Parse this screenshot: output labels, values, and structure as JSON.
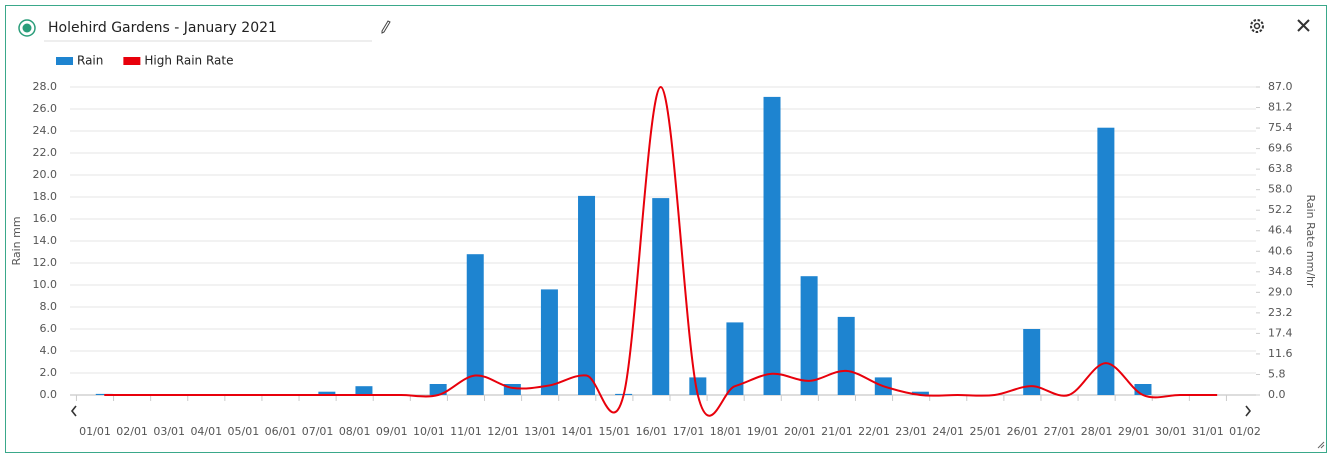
{
  "chart_data": {
    "type": "bar",
    "title": "Holehird Gardens - January 2021",
    "categories": [
      "01/01",
      "02/01",
      "03/01",
      "04/01",
      "05/01",
      "06/01",
      "07/01",
      "08/01",
      "09/01",
      "10/01",
      "11/01",
      "12/01",
      "13/01",
      "14/01",
      "15/01",
      "16/01",
      "17/01",
      "18/01",
      "19/01",
      "20/01",
      "21/01",
      "22/01",
      "23/01",
      "24/01",
      "25/01",
      "26/01",
      "27/01",
      "28/01",
      "29/01",
      "30/01",
      "31/01",
      "01/02"
    ],
    "y_label": "Rain mm",
    "y2_label": "Rain Rate mm/hr",
    "ylim": [
      0,
      28
    ],
    "yticks": [
      {
        "value": 0,
        "label": "0.0"
      },
      {
        "value": 2,
        "label": "2.0"
      },
      {
        "value": 4,
        "label": "4.0"
      },
      {
        "value": 6,
        "label": "6.0"
      },
      {
        "value": 8,
        "label": "8.0"
      },
      {
        "value": 10,
        "label": "10.0"
      },
      {
        "value": 12,
        "label": "12.0"
      },
      {
        "value": 14,
        "label": "14.0"
      },
      {
        "value": 16,
        "label": "16.0"
      },
      {
        "value": 18,
        "label": "18.0"
      },
      {
        "value": 20,
        "label": "20.0"
      },
      {
        "value": 22,
        "label": "22.0"
      },
      {
        "value": 24,
        "label": "24.0"
      },
      {
        "value": 26,
        "label": "26.0"
      },
      {
        "value": 28,
        "label": "28.0"
      }
    ],
    "y2lim": [
      0,
      87
    ],
    "y2ticks": [
      {
        "value": 0,
        "label": "0.0"
      },
      5.8,
      11.6,
      17.4,
      23.2,
      {
        "value": 29,
        "label": "29.0"
      },
      34.8,
      40.6,
      46.4,
      52.2,
      {
        "value": 58,
        "label": "58.0"
      },
      63.8,
      69.6,
      75.4,
      81.2,
      {
        "value": 87,
        "label": "87.0"
      }
    ],
    "grid": true,
    "series": [
      {
        "name": "Rain",
        "type": "bar",
        "color": "#1e84d0",
        "values": [
          0.1,
          0,
          0,
          0,
          0,
          0,
          0.3,
          0.8,
          0,
          1.0,
          12.8,
          1.0,
          9.6,
          18.1,
          0.1,
          17.9,
          1.6,
          6.6,
          27.1,
          10.8,
          7.1,
          1.6,
          0.3,
          0,
          0,
          6.0,
          0,
          24.3,
          1.0,
          0,
          0,
          null
        ]
      },
      {
        "name": "High Rain Rate",
        "type": "line",
        "axis": "y2",
        "color": "#e8000b",
        "values": [
          0,
          0,
          0,
          0,
          0,
          0,
          0,
          0,
          0,
          0,
          5.5,
          2.0,
          2.7,
          5.5,
          0,
          87,
          0,
          2.5,
          6.0,
          4.0,
          6.8,
          2.5,
          0,
          0,
          0,
          2.5,
          0,
          9.0,
          0,
          0,
          0,
          null
        ]
      }
    ]
  }
}
